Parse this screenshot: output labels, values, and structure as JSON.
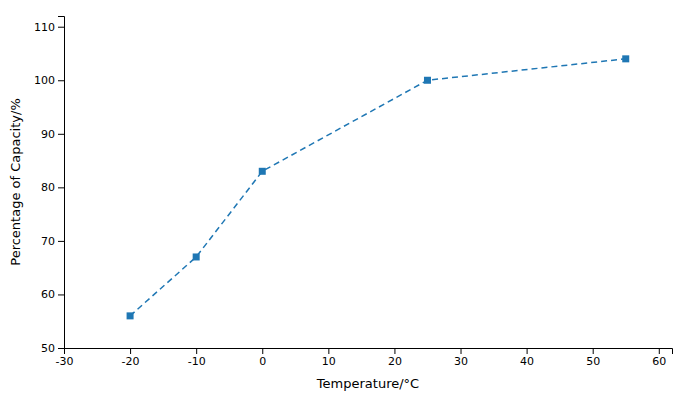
{
  "chart_data": {
    "type": "line",
    "xlabel": "Temperature/°C",
    "ylabel": "Percentage of Capacity/%",
    "x": [
      -20,
      -10,
      0,
      25,
      55
    ],
    "values": [
      56,
      67,
      83,
      100,
      104
    ],
    "xlim": [
      -30,
      62
    ],
    "ylim": [
      50,
      112
    ],
    "xticks": [
      -30,
      -20,
      -10,
      0,
      10,
      20,
      30,
      40,
      50,
      60
    ],
    "yticks": [
      50,
      60,
      70,
      80,
      90,
      100,
      110
    ],
    "marker": "square",
    "line_style": "dashed",
    "grid": false
  }
}
